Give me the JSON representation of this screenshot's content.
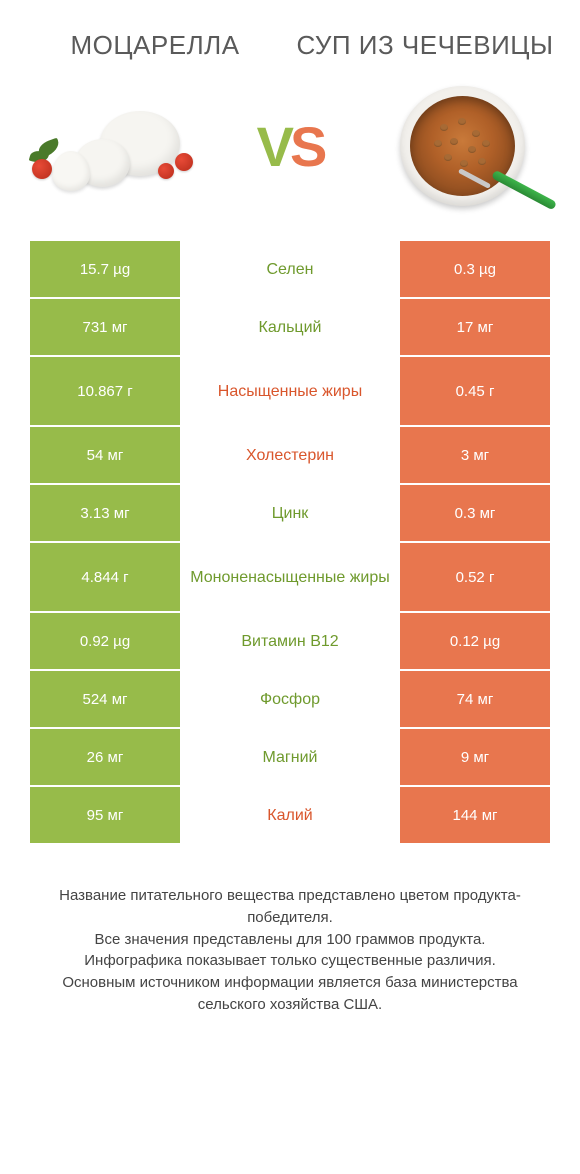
{
  "colors": {
    "green": "#97bb4a",
    "orange": "#e8764e",
    "orange_text": "#d9562c",
    "green_text": "#6f9a2d",
    "white": "#ffffff"
  },
  "header": {
    "left_title": "Моцарелла",
    "right_title": "Суп из чечевицы",
    "vs_v": "V",
    "vs_s": "S"
  },
  "table": {
    "rows": [
      {
        "left": "15.7 µg",
        "label": "Селен",
        "right": "0.3 µg",
        "winner": "left",
        "tall": false
      },
      {
        "left": "731 мг",
        "label": "Кальций",
        "right": "17 мг",
        "winner": "left",
        "tall": false
      },
      {
        "left": "10.867 г",
        "label": "Насыщенные жиры",
        "right": "0.45 г",
        "winner": "right",
        "tall": true
      },
      {
        "left": "54 мг",
        "label": "Холестерин",
        "right": "3 мг",
        "winner": "right",
        "tall": false
      },
      {
        "left": "3.13 мг",
        "label": "Цинк",
        "right": "0.3 мг",
        "winner": "left",
        "tall": false
      },
      {
        "left": "4.844 г",
        "label": "Мононенасыщенные жиры",
        "right": "0.52 г",
        "winner": "left",
        "tall": true
      },
      {
        "left": "0.92 µg",
        "label": "Витамин B12",
        "right": "0.12 µg",
        "winner": "left",
        "tall": false
      },
      {
        "left": "524 мг",
        "label": "Фосфор",
        "right": "74 мг",
        "winner": "left",
        "tall": false
      },
      {
        "left": "26 мг",
        "label": "Магний",
        "right": "9 мг",
        "winner": "left",
        "tall": false
      },
      {
        "left": "95 мг",
        "label": "Калий",
        "right": "144 мг",
        "winner": "right",
        "tall": false
      }
    ]
  },
  "footer": {
    "line1": "Название питательного вещества представлено цветом продукта-победителя.",
    "line2": "Все значения представлены для 100 граммов продукта.",
    "line3": "Инфографика показывает только существенные различия.",
    "line4": "Основным источником информации является база министерства сельского хозяйства США."
  }
}
